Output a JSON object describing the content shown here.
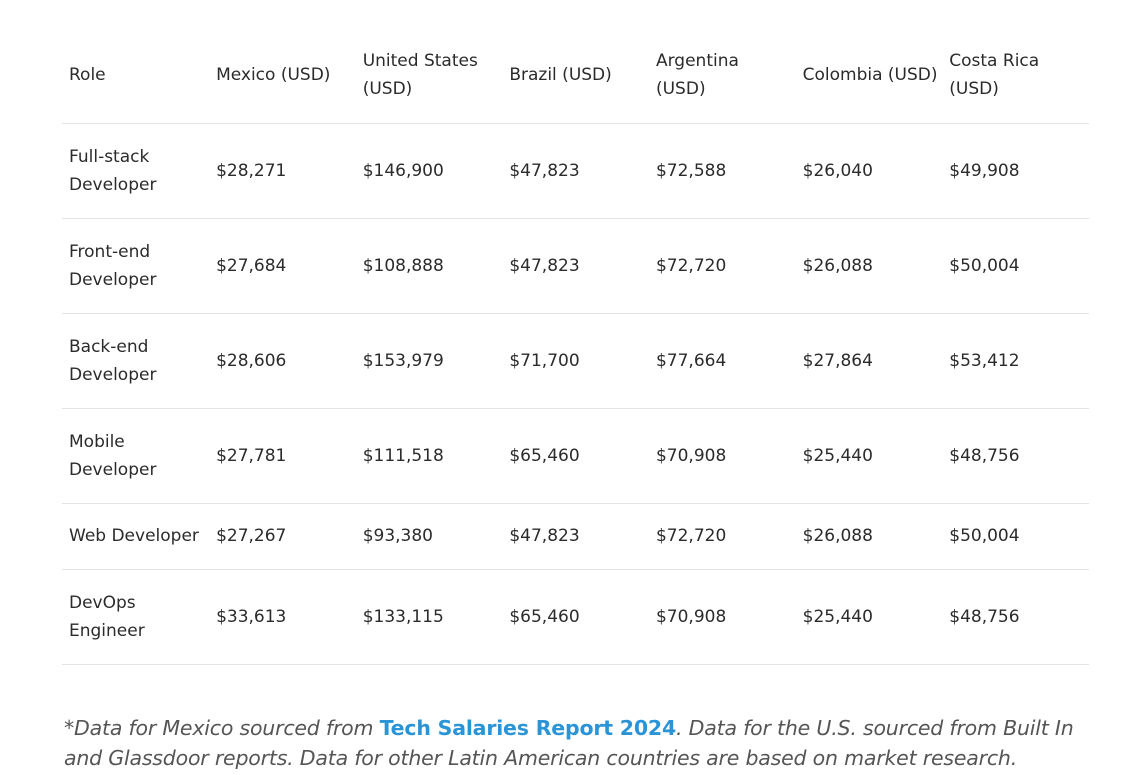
{
  "table": {
    "headers": [
      "Role",
      "Mexico (USD)",
      "United States (USD)",
      "Brazil (USD)",
      "Argentina (USD)",
      "Colombia (USD)",
      "Costa Rica (USD)"
    ],
    "rows": [
      {
        "role": "Full-stack Developer",
        "values": [
          "$28,271",
          "$146,900",
          "$47,823",
          "$72,588",
          "$26,040",
          "$49,908"
        ]
      },
      {
        "role": "Front-end Developer",
        "values": [
          "$27,684",
          "$108,888",
          "$47,823",
          "$72,720",
          "$26,088",
          "$50,004"
        ]
      },
      {
        "role": "Back-end Developer",
        "values": [
          "$28,606",
          "$153,979",
          "$71,700",
          "$77,664",
          "$27,864",
          "$53,412"
        ]
      },
      {
        "role": "Mobile Developer",
        "values": [
          "$27,781",
          "$111,518",
          "$65,460",
          "$70,908",
          "$25,440",
          "$48,756"
        ]
      },
      {
        "role": "Web Developer",
        "values": [
          "$27,267",
          "$93,380",
          "$47,823",
          "$72,720",
          "$26,088",
          "$50,004"
        ]
      },
      {
        "role": "DevOps Engineer",
        "values": [
          "$33,613",
          "$133,115",
          "$65,460",
          "$70,908",
          "$25,440",
          "$48,756"
        ]
      }
    ]
  },
  "footnote": {
    "before_link": "*Data for Mexico sourced from ",
    "link_text": "Tech Salaries Report 2024",
    "after_link": ". Data for the U.S. sourced from Built In and Glassdoor reports. Data for other Latin American countries are based on market research.",
    "link_color": "#2a94d6"
  }
}
